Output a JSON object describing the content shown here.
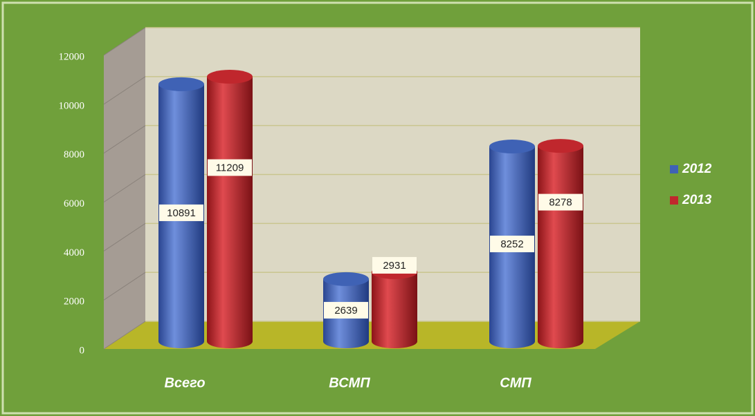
{
  "chart_data": {
    "type": "bar",
    "categories": [
      "Всего",
      "ВСМП",
      "СМП"
    ],
    "series": [
      {
        "name": "2012",
        "color": "#3f62b5",
        "values": [
          10891,
          2639,
          8252
        ]
      },
      {
        "name": "2013",
        "color": "#c0272d",
        "values": [
          11209,
          2931,
          8278
        ]
      }
    ],
    "ylim": [
      0,
      12000
    ],
    "yticks": [
      0,
      2000,
      4000,
      6000,
      8000,
      10000,
      12000
    ],
    "grid": true,
    "legend": "right"
  }
}
